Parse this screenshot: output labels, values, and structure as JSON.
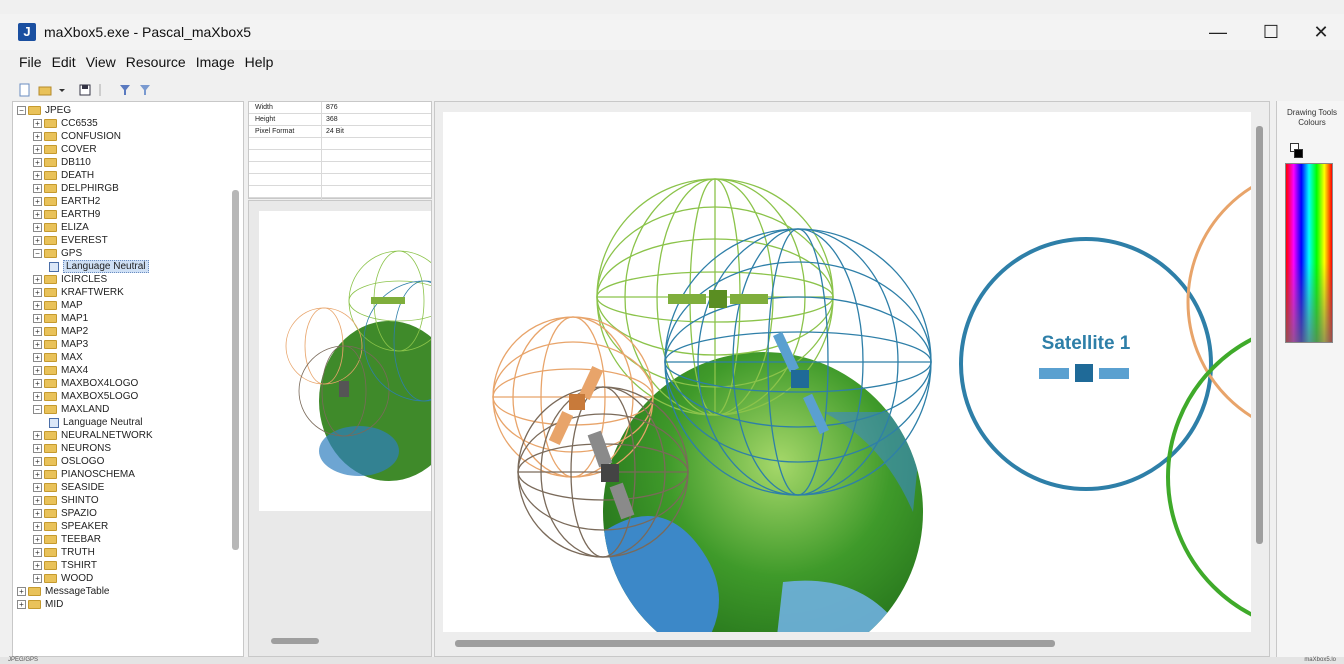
{
  "window": {
    "title": "maXbox5.exe - Pascal_maXbox5",
    "app_icon_letter": "J",
    "controls": {
      "minimize": "—",
      "maximize": "☐",
      "close": "✕"
    }
  },
  "menu": [
    "File",
    "Edit",
    "View",
    "Resource",
    "Image",
    "Help"
  ],
  "tree": {
    "root": "JPEG",
    "items": [
      "CC6535",
      "CONFUSION",
      "COVER",
      "DB110",
      "DEATH",
      "DELPHIRGB",
      "EARTH2",
      "EARTH9",
      "ELIZA",
      "EVEREST",
      "GPS",
      "Language Neutral",
      "ICIRCLES",
      "KRAFTWERK",
      "MAP",
      "MAP1",
      "MAP2",
      "MAP3",
      "MAX",
      "MAX4",
      "MAXBOX4LOGO",
      "MAXBOX5LOGO",
      "MAXLAND",
      "Language Neutral",
      "NEURALNETWORK",
      "NEURONS",
      "OSLOGO",
      "PIANOSCHEMA",
      "SEASIDE",
      "SHINTO",
      "SPAZIO",
      "SPEAKER",
      "TEEBAR",
      "TRUTH",
      "TSHIRT",
      "WOOD"
    ],
    "bottom_items": [
      "MessageTable",
      "MID"
    ]
  },
  "properties": [
    {
      "key": "Width",
      "value": "876"
    },
    {
      "key": "Height",
      "value": "368"
    },
    {
      "key": "Pixel Format",
      "value": "24 Bit"
    }
  ],
  "canvas": {
    "label": "Satellite 1",
    "colors": {
      "green": "#8bc34a",
      "blue": "#2e7fa8",
      "orange": "#e8a46a",
      "brown": "#7a6a5a"
    }
  },
  "tools": {
    "title_line1": "Drawing Tools",
    "title_line2": "Colours"
  },
  "status": {
    "left": "JPEG/GPS",
    "right": "maXbox5.lo"
  }
}
